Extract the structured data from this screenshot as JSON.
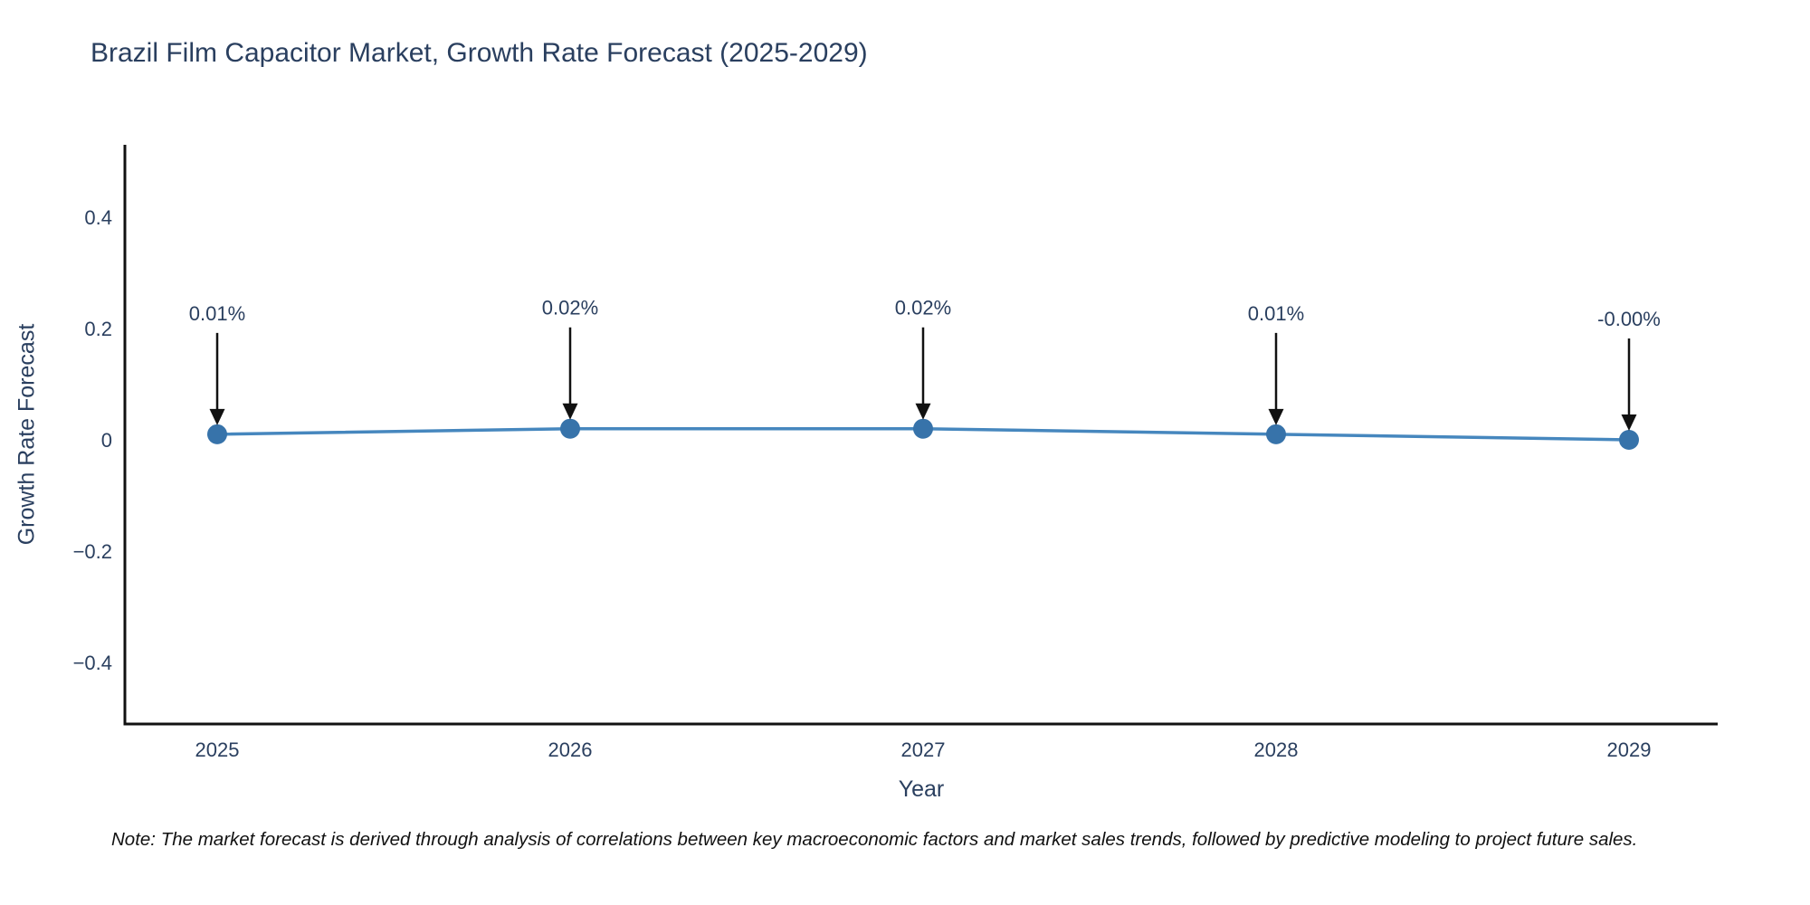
{
  "chart_data": {
    "type": "line",
    "title": "Brazil Film Capacitor Market, Growth Rate Forecast (2025-2029)",
    "xlabel": "Year",
    "ylabel": "Growth Rate Forecast",
    "categories": [
      2025,
      2026,
      2027,
      2028,
      2029
    ],
    "series": [
      {
        "name": "Growth Rate Forecast",
        "values": [
          0.01,
          0.02,
          0.02,
          0.01,
          -0.0
        ]
      }
    ],
    "point_labels": [
      "0.01%",
      "0.02%",
      "0.02%",
      "0.01%",
      "-0.00%"
    ],
    "x_tick_labels": [
      "2025",
      "2026",
      "2027",
      "2028",
      "2029"
    ],
    "y_tick_values": [
      0.4,
      0.2,
      0,
      -0.2,
      -0.4
    ],
    "y_tick_labels": [
      "0.4",
      "0.2",
      "0",
      "−0.2",
      "−0.4"
    ],
    "ylim": [
      -0.5,
      0.5
    ],
    "grid": false,
    "legend": "none",
    "colors": {
      "line": "#4687be",
      "marker": "#3773aa",
      "text": "#2a3f5f",
      "axis": "#111111"
    },
    "note": "Note: The market forecast is derived through analysis of correlations between key macroeconomic factors and market sales trends, followed by predictive modeling to project future sales."
  }
}
